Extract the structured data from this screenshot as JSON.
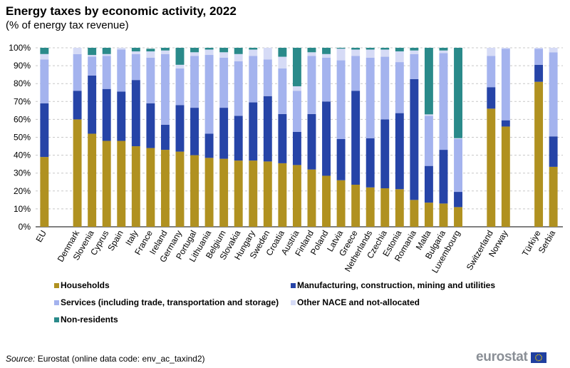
{
  "chart_data": {
    "type": "bar",
    "stacked": true,
    "title": "Energy taxes by economic activity, 2022",
    "subtitle": "(% of energy tax revenue)",
    "ylim": [
      0,
      100
    ],
    "yticks": [
      "0%",
      "10%",
      "20%",
      "30%",
      "40%",
      "50%",
      "60%",
      "70%",
      "80%",
      "90%",
      "100%"
    ],
    "grid": true,
    "legend_position": "bottom",
    "categories": [
      "EU",
      "Denmark",
      "Slovenia",
      "Cyprus",
      "Spain",
      "Italy",
      "France",
      "Ireland",
      "Germany",
      "Portugal",
      "Lithuania",
      "Belgium",
      "Slovakia",
      "Hungary",
      "Sweden",
      "Croatia",
      "Austria",
      "Finland",
      "Poland",
      "Latvia",
      "Greece",
      "Netherlands",
      "Czechia",
      "Estonia",
      "Romania",
      "Malta",
      "Bulgaria",
      "Luxembourg",
      "Switzerland",
      "Norway",
      "Türkiye",
      "Serbia"
    ],
    "groups": [
      [
        0
      ],
      [
        1,
        27
      ],
      [
        28,
        29
      ],
      [
        30,
        31
      ]
    ],
    "series": [
      {
        "name": "Households",
        "color": "#b09120",
        "values": [
          39,
          60,
          52,
          48,
          48,
          45,
          44,
          43,
          42,
          40,
          38.5,
          38,
          37,
          37,
          36.5,
          35.5,
          34.5,
          32,
          28.5,
          26,
          23.5,
          22,
          21.5,
          21,
          15,
          13.5,
          13,
          11,
          66,
          56,
          81,
          33.5
        ]
      },
      {
        "name": "Manufacturing, construction, mining and utilities",
        "color": "#2644a7",
        "values": [
          30,
          16,
          32.5,
          29,
          27.5,
          37,
          25,
          14,
          26,
          26.5,
          13.5,
          28.5,
          25,
          32.5,
          36.5,
          27.5,
          18.5,
          31,
          41.5,
          23,
          52.5,
          27.5,
          38.5,
          42.5,
          67.5,
          20.5,
          30,
          8.5,
          12,
          3.5,
          9.5,
          17
        ]
      },
      {
        "name": "Services (including trade, transportation and storage)",
        "color": "#a4b3ee",
        "values": [
          24.5,
          20.5,
          10.5,
          18.5,
          23.5,
          14.5,
          25.5,
          39.5,
          20.5,
          29,
          44,
          28,
          30.5,
          26,
          20.5,
          25.5,
          23,
          32.5,
          24.5,
          44,
          19.5,
          45,
          35,
          28.5,
          14,
          28,
          54,
          29.5,
          17.5,
          40,
          9,
          47
        ]
      },
      {
        "name": "Other NACE and not-allocated",
        "color": "#d6dbf6",
        "values": [
          3,
          3.5,
          1,
          1,
          1,
          1.5,
          3.5,
          2,
          2,
          2,
          3,
          3,
          4,
          3.5,
          6.5,
          6.5,
          2.5,
          2,
          2,
          6.5,
          3.5,
          4.5,
          4,
          6,
          2,
          0.8,
          1.5,
          0.5,
          4.5,
          0.5,
          0.5,
          2.5
        ]
      },
      {
        "name": "Non-residents",
        "color": "#2a8a8a",
        "values": [
          3.5,
          0,
          4,
          3.5,
          0,
          2,
          1.5,
          1.5,
          9.5,
          2.5,
          1,
          2.5,
          3.5,
          1,
          0,
          5,
          21.5,
          2.5,
          3.5,
          0.5,
          1,
          1,
          1,
          2,
          1.5,
          37.2,
          1.5,
          50.5,
          0,
          0,
          0,
          0
        ]
      }
    ],
    "legend_order": [
      0,
      1,
      2,
      3,
      4
    ]
  },
  "footer": {
    "source_label": "Source:",
    "source_text": " Eurostat (online data code: env_ac_taxind2)",
    "logo_text": "eurostat"
  }
}
